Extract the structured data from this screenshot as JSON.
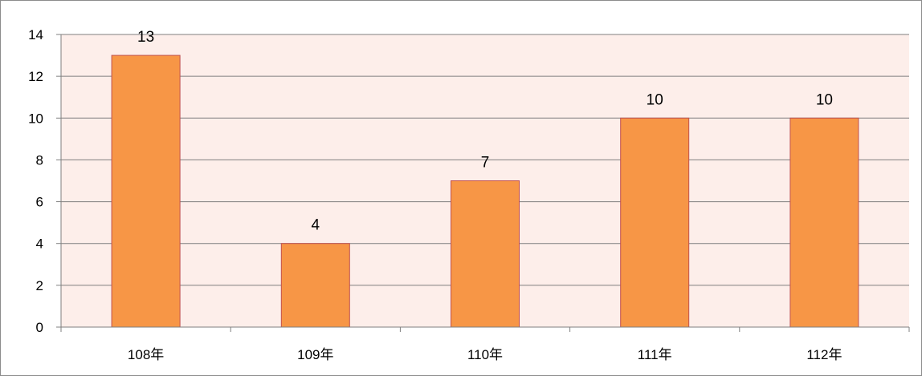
{
  "chart_data": {
    "type": "bar",
    "categories": [
      "108年",
      "109年",
      "110年",
      "111年",
      "112年"
    ],
    "values": [
      13,
      4,
      7,
      10,
      10
    ],
    "data_labels": [
      "13",
      "4",
      "7",
      "10",
      "10"
    ],
    "ylim": [
      0,
      14
    ],
    "yticks": [
      0,
      2,
      4,
      6,
      8,
      10,
      12,
      14
    ],
    "ytick_labels": [
      "0",
      "2",
      "4",
      "6",
      "8",
      "10",
      "12",
      "14"
    ],
    "grid": true,
    "legend": "none",
    "colors": {
      "bar_fill": "#f79646",
      "bar_stroke": "#c0504d",
      "plot_background": "#fdeeea",
      "gridline": "#7f7f7f",
      "axis": "#7f7f7f"
    }
  }
}
